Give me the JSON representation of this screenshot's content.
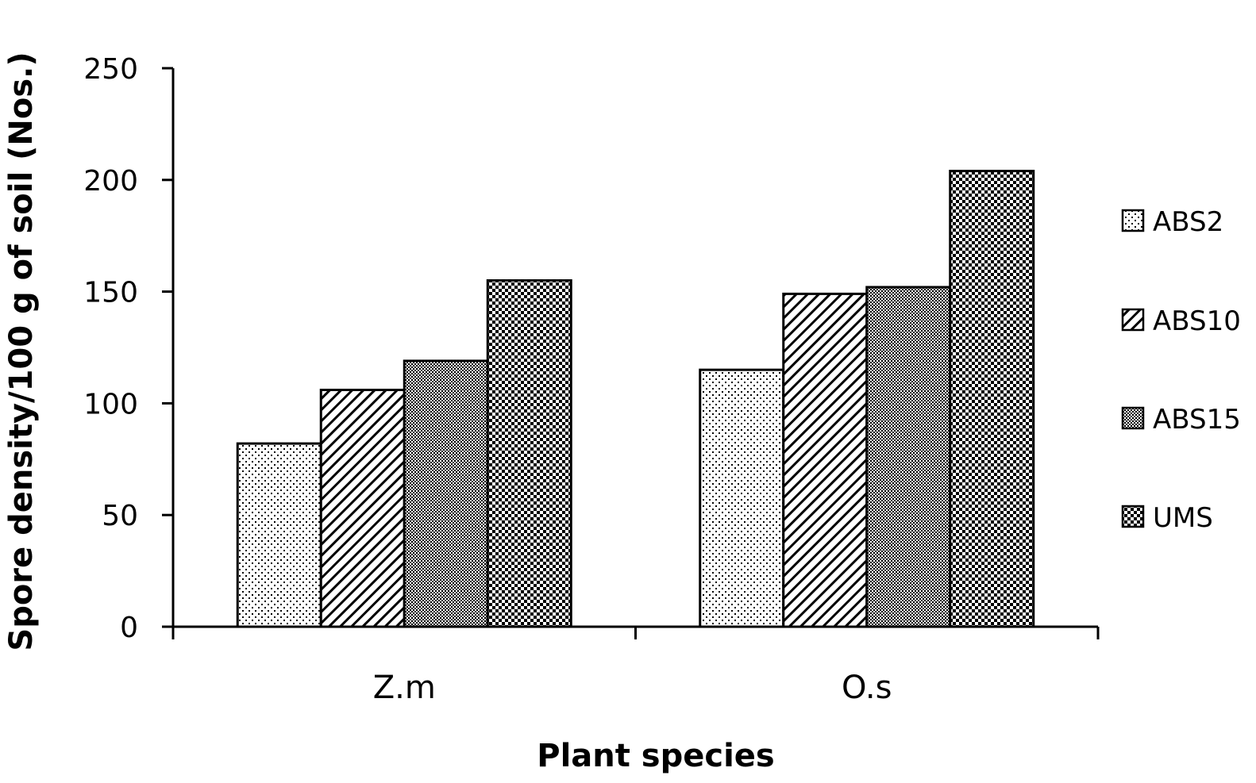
{
  "chart_data": {
    "type": "bar",
    "categories": [
      "Z.m",
      "O.s"
    ],
    "series": [
      {
        "name": "ABS2",
        "values": [
          82,
          115
        ],
        "pattern": "dots"
      },
      {
        "name": "ABS10",
        "values": [
          106,
          149
        ],
        "pattern": "diagonal"
      },
      {
        "name": "ABS15",
        "values": [
          119,
          152
        ],
        "pattern": "fine-check"
      },
      {
        "name": "UMS",
        "values": [
          155,
          204
        ],
        "pattern": "check"
      }
    ],
    "xlabel": "Plant species",
    "ylabel": "Spore density/100 g of soil  (Nos.)",
    "ylim": [
      0,
      250
    ],
    "yticks": [
      0,
      50,
      100,
      150,
      200,
      250
    ],
    "grid": false,
    "legend_position": "right"
  }
}
